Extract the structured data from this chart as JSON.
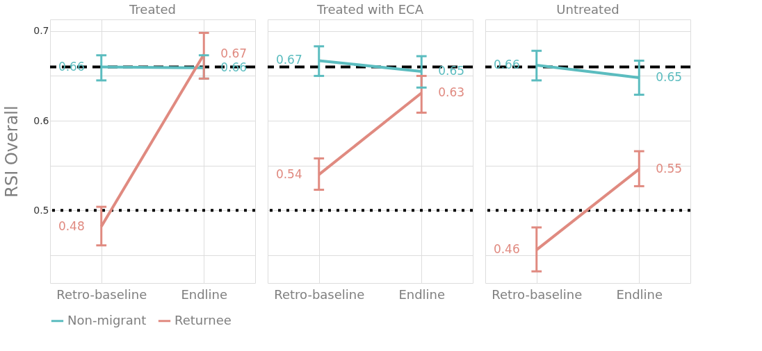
{
  "chart_data": [
    {
      "type": "line",
      "title": "Treated",
      "ylabel": "RSI Overall",
      "categories": [
        "Retro-baseline",
        "Endline"
      ],
      "ylim": [
        0.419,
        0.713
      ],
      "yticks": [
        {
          "value": 0.45,
          "label": null
        },
        0.5,
        {
          "value": 0.55,
          "label": null
        },
        0.6,
        {
          "value": 0.65,
          "label": null
        },
        0.7
      ],
      "grid": true,
      "legend": "bottom",
      "ref_lines": [
        {
          "axis": "y",
          "value": 0.66,
          "color": "#000000",
          "line_style": "dashed"
        },
        {
          "axis": "y",
          "value": 0.5,
          "color": "#000000",
          "line_style": "dotted"
        }
      ],
      "series": [
        {
          "name": "Non-migrant",
          "color": "#5bbcbf",
          "values": [
            0.66,
            0.659
          ],
          "errors": [
            [
              0.645,
              0.673
            ],
            [
              0.647,
              0.673
            ]
          ],
          "value_labels": [
            "0.66",
            "0.66"
          ]
        },
        {
          "name": "Returnee",
          "color": "#e08a80",
          "values": [
            0.482,
            0.674
          ],
          "errors": [
            [
              0.461,
              0.504
            ],
            [
              0.647,
              0.698
            ]
          ],
          "value_labels": [
            "0.48",
            "0.67"
          ]
        }
      ]
    },
    {
      "type": "line",
      "title": "Treated with ECA",
      "categories": [
        "Retro-baseline",
        "Endline"
      ],
      "ylim": [
        0.419,
        0.713
      ],
      "yticks": [
        {
          "value": 0.45,
          "label": null
        },
        0.5,
        {
          "value": 0.55,
          "label": null
        },
        0.6,
        {
          "value": 0.65,
          "label": null
        },
        0.7
      ],
      "grid": true,
      "tick_labels": "x",
      "ref_lines": [
        {
          "axis": "y",
          "value": 0.66,
          "color": "#000000",
          "line_style": "dashed"
        },
        {
          "axis": "y",
          "value": 0.5,
          "color": "#000000",
          "line_style": "dotted"
        }
      ],
      "series": [
        {
          "color": "#5bbcbf",
          "values": [
            0.667,
            0.655
          ],
          "errors": [
            [
              0.65,
              0.683
            ],
            [
              0.637,
              0.672
            ]
          ],
          "value_labels": [
            "0.67",
            "0.65"
          ]
        },
        {
          "color": "#e08a80",
          "values": [
            0.54,
            0.631
          ],
          "errors": [
            [
              0.523,
              0.558
            ],
            [
              0.609,
              0.65
            ]
          ],
          "value_labels": [
            "0.54",
            "0.63"
          ]
        }
      ]
    },
    {
      "type": "line",
      "title": "Untreated",
      "categories": [
        "Retro-baseline",
        "Endline"
      ],
      "ylim": [
        0.419,
        0.713
      ],
      "yticks": [
        {
          "value": 0.45,
          "label": null
        },
        0.5,
        {
          "value": 0.55,
          "label": null
        },
        0.6,
        {
          "value": 0.65,
          "label": null
        },
        0.7
      ],
      "grid": true,
      "tick_labels": "x",
      "ref_lines": [
        {
          "axis": "y",
          "value": 0.66,
          "color": "#000000",
          "line_style": "dashed"
        },
        {
          "axis": "y",
          "value": 0.5,
          "color": "#000000",
          "line_style": "dotted"
        }
      ],
      "series": [
        {
          "color": "#5bbcbf",
          "values": [
            0.662,
            0.648
          ],
          "errors": [
            [
              0.645,
              0.678
            ],
            [
              0.629,
              0.667
            ]
          ],
          "value_labels": [
            "0.66",
            "0.65"
          ]
        },
        {
          "color": "#e08a80",
          "values": [
            0.456,
            0.546
          ],
          "errors": [
            [
              0.432,
              0.481
            ],
            [
              0.527,
              0.566
            ]
          ],
          "value_labels": [
            "0.46",
            "0.55"
          ]
        }
      ]
    }
  ]
}
